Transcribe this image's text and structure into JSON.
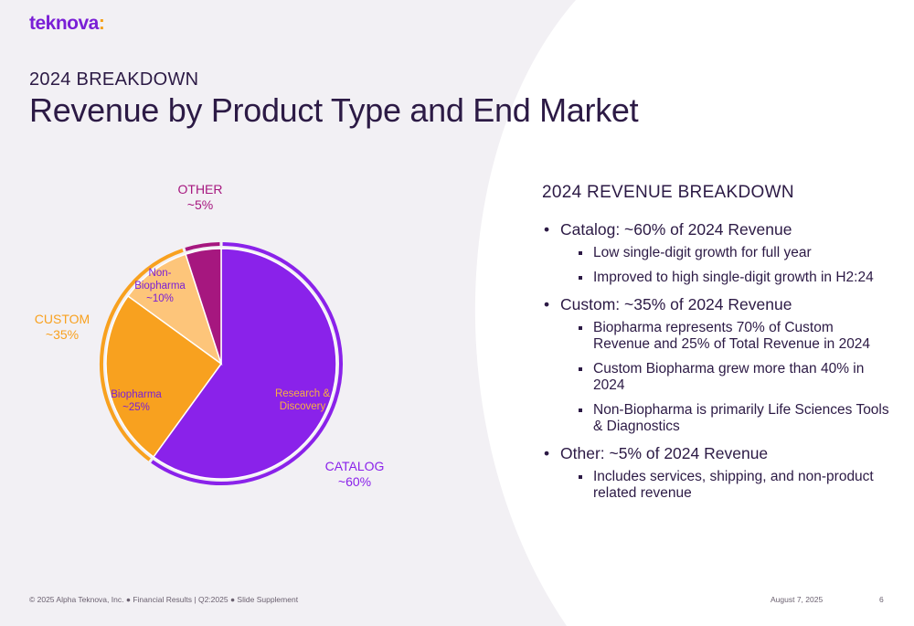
{
  "header": {
    "logo_text": "teknova",
    "logo_colon": ":",
    "eyebrow": "2024 BREAKDOWN",
    "title": "Revenue by Product Type and End Market"
  },
  "colors": {
    "purple": "#8a22ea",
    "orange": "#f8a11f",
    "light_orange": "#fdc57a",
    "magenta": "#a6177f",
    "text_dark": "#2c1a45"
  },
  "chart_data": {
    "type": "pie",
    "slices": [
      {
        "label": "Research & Discovery",
        "value": 60,
        "color": "#8a22ea",
        "label_color": "#f8b040"
      },
      {
        "label": "Biopharma ~25%",
        "value": 25,
        "color": "#f8a11f",
        "label_color": "#7a1fd6"
      },
      {
        "label": "Non-Biopharma ~10%",
        "value": 10,
        "color": "#fdc57a",
        "label_color": "#7a1fd6"
      },
      {
        "label": "",
        "value": 5,
        "color": "#a6177f",
        "label_color": "#ffffff"
      }
    ],
    "outer_groups": [
      {
        "name": "CATALOG",
        "pct": "~60%",
        "color": "#8a22ea",
        "start": 0,
        "end": 60
      },
      {
        "name": "CUSTOM",
        "pct": "~35%",
        "color": "#f8a11f",
        "start": 60,
        "end": 95
      },
      {
        "name": "OTHER",
        "pct": "~5%",
        "color": "#a6177f",
        "start": 95,
        "end": 100
      }
    ]
  },
  "panel": {
    "title": "2024 REVENUE BREAKDOWN",
    "items": [
      {
        "text": "Catalog: ~60% of 2024 Revenue",
        "subs": [
          "Low single-digit growth for full year",
          "Improved to high single-digit growth in H2:24"
        ]
      },
      {
        "text": "Custom: ~35% of 2024 Revenue",
        "subs": [
          "Biopharma represents 70% of Custom Revenue and 25% of Total Revenue in 2024",
          "Custom Biopharma grew more than 40% in 2024",
          "Non-Biopharma is primarily Life Sciences Tools & Diagnostics"
        ]
      },
      {
        "text": "Other: ~5% of 2024 Revenue",
        "subs": [
          "Includes services, shipping, and non-product related revenue"
        ]
      }
    ]
  },
  "footer": {
    "left": "© 2025 Alpha Teknova, Inc.  ●  Financial Results | Q2:2025  ●  Slide Supplement",
    "date": "August 7, 2025",
    "page": "6"
  }
}
